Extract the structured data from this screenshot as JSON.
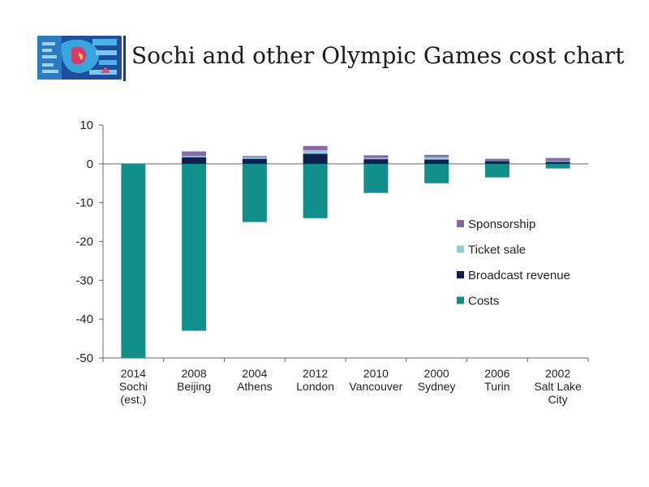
{
  "page": {
    "title": "Sochi and other Olympic Games cost chart"
  },
  "colors": {
    "costs": "#118f8b",
    "broadcast": "#0f1f4f",
    "ticket": "#93ccd9",
    "sponsorship": "#8769a8",
    "divider": "#1f3c7a",
    "axis": "#666666"
  },
  "chart_data": {
    "type": "bar",
    "stacked": true,
    "title": "",
    "xlabel": "",
    "ylabel": "",
    "ylim": [
      -50,
      10
    ],
    "yticks": [
      10,
      0,
      -10,
      -20,
      -30,
      -40,
      -50
    ],
    "categories": [
      [
        "2014",
        "Sochi",
        "(est.)"
      ],
      [
        "2008",
        "Beijing"
      ],
      [
        "2004",
        "Athens"
      ],
      [
        "2012",
        "London"
      ],
      [
        "2010",
        "Vancouver"
      ],
      [
        "2000",
        "Sydney"
      ],
      [
        "2006",
        "Turin"
      ],
      [
        "2002",
        "Salt Lake",
        "City"
      ]
    ],
    "series": [
      {
        "name": "Costs",
        "color": "#118f8b",
        "values": [
          -50,
          -43,
          -15,
          -14,
          -7.5,
          -5,
          -3.5,
          -1.2
        ]
      },
      {
        "name": "Broadcast revenue",
        "color": "#0f1f4f",
        "values": [
          0,
          1.7,
          1.3,
          2.6,
          1.2,
          1.1,
          0.7,
          0.5
        ]
      },
      {
        "name": "Ticket sale",
        "color": "#93ccd9",
        "values": [
          0,
          0.3,
          0.4,
          0.9,
          0.3,
          0.6,
          0.1,
          0.2
        ]
      },
      {
        "name": "Sponsorship",
        "color": "#8769a8",
        "values": [
          0,
          1.2,
          0.3,
          1.1,
          0.7,
          0.6,
          0.5,
          0.8
        ]
      }
    ],
    "legend": {
      "position": "right",
      "order": [
        "Sponsorship",
        "Ticket sale",
        "Broadcast revenue",
        "Costs"
      ]
    },
    "grid": false
  }
}
